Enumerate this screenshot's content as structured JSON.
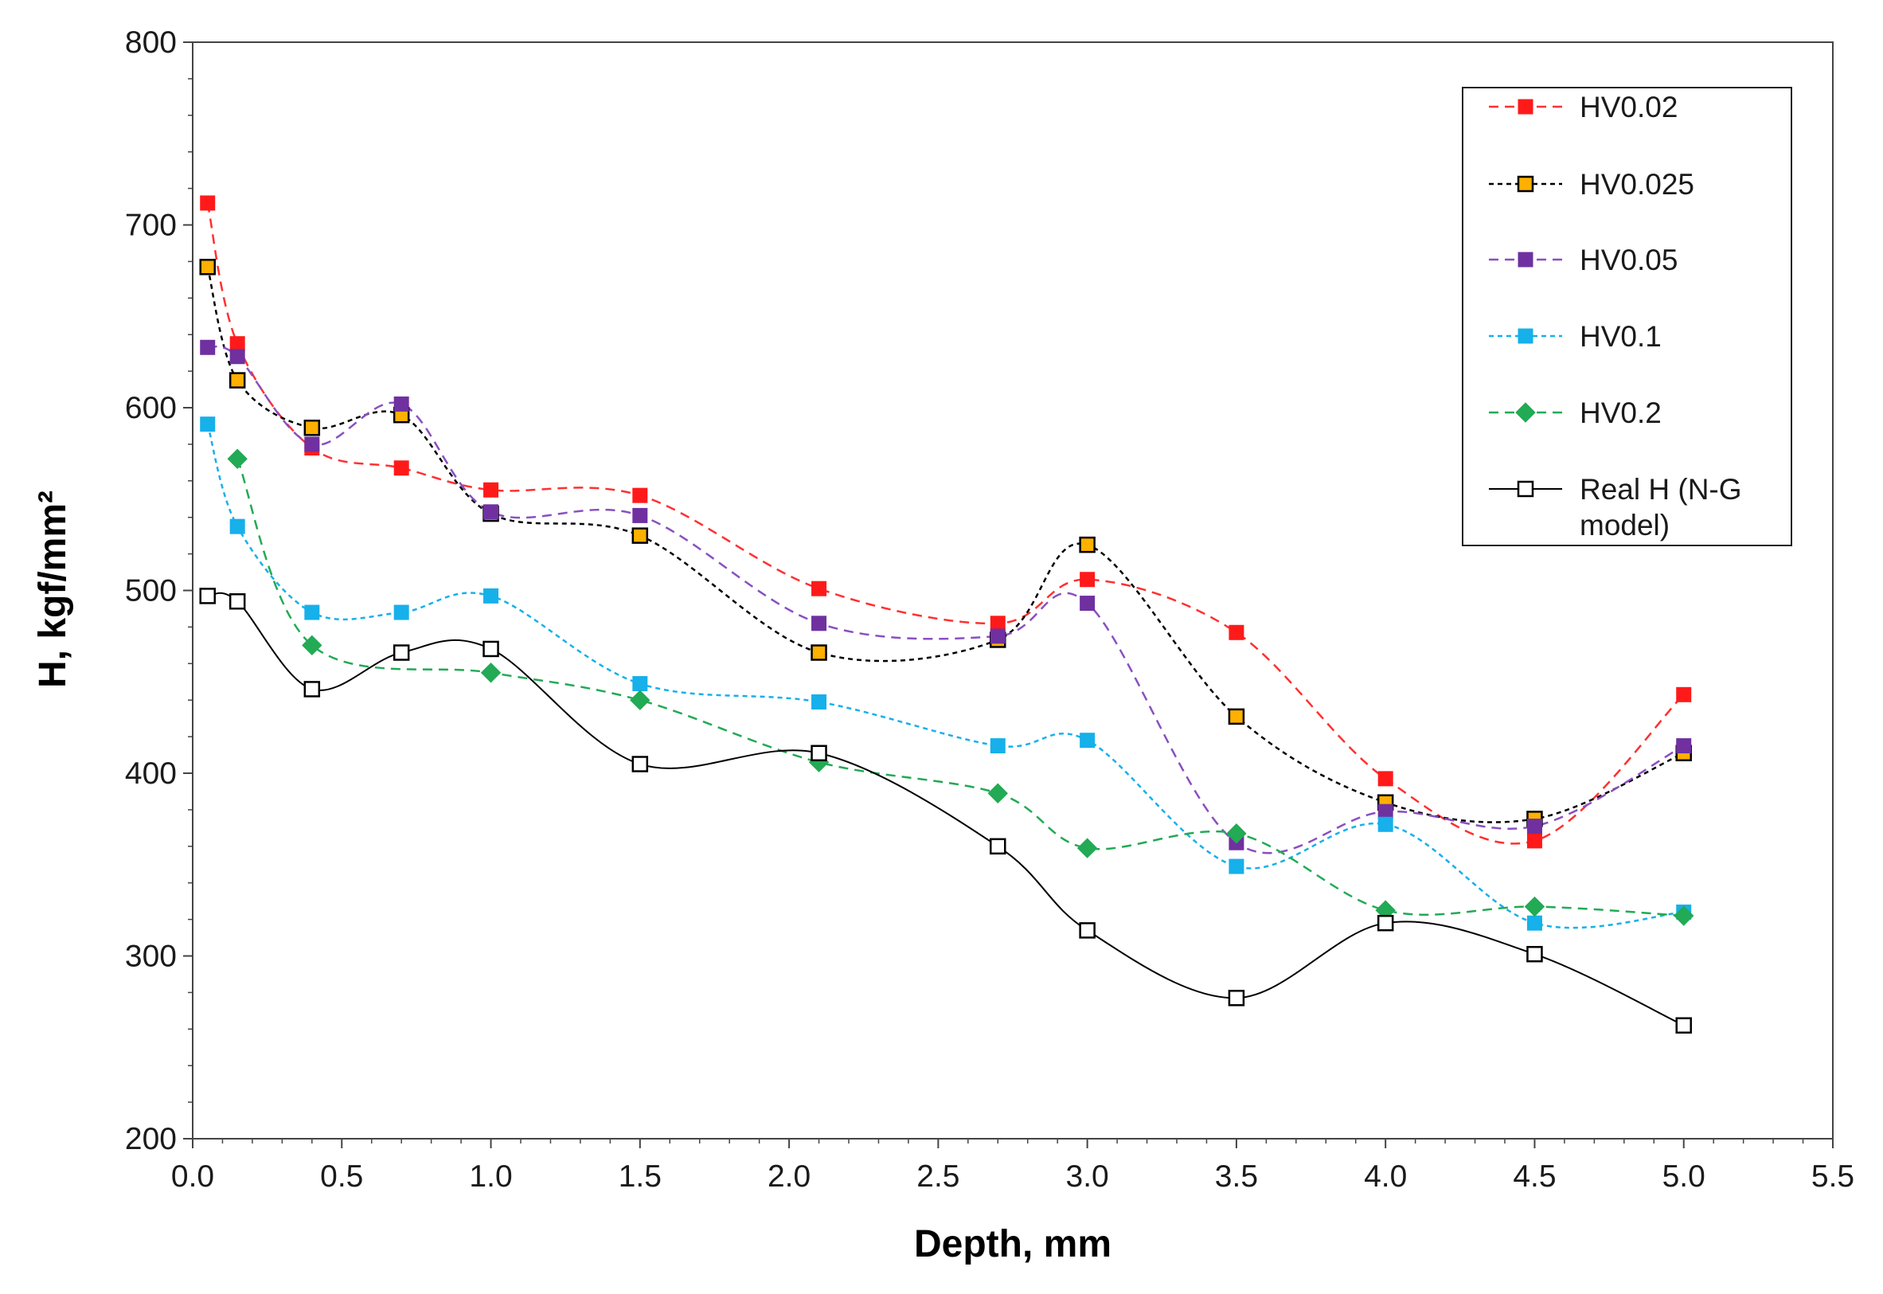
{
  "chart_data": {
    "type": "line",
    "title": "",
    "xlabel": "Depth, mm",
    "ylabel": "H, kgf/mm²",
    "xlim": [
      0.0,
      5.5
    ],
    "ylim": [
      200,
      800
    ],
    "xticks": [
      "0.0",
      "0.5",
      "1.0",
      "1.5",
      "2.0",
      "2.5",
      "3.0",
      "3.5",
      "4.0",
      "4.5",
      "5.0",
      "5.5"
    ],
    "yticks": [
      "200",
      "300",
      "400",
      "500",
      "600",
      "700",
      "800"
    ],
    "grid": false,
    "legend_position": "top-right",
    "x": [
      0.05,
      0.15,
      0.4,
      0.7,
      1.0,
      1.5,
      2.1,
      2.7,
      3.0,
      3.5,
      4.0,
      4.5,
      5.0
    ],
    "series": [
      {
        "name": "HV0.02",
        "color": "#ff1a1a",
        "line_color": "#ff3030",
        "dash": "dashed",
        "marker": "square-filled",
        "values": [
          712,
          635,
          578,
          567,
          555,
          552,
          501,
          482,
          506,
          477,
          397,
          363,
          443
        ]
      },
      {
        "name": "HV0.025",
        "color": "#ffb000",
        "line_color": "#000000",
        "dash": "dotted",
        "marker": "square-outlined",
        "values": [
          677,
          615,
          589,
          596,
          542,
          530,
          466,
          473,
          525,
          431,
          384,
          375,
          411
        ]
      },
      {
        "name": "HV0.05",
        "color": "#7030a0",
        "line_color": "#8a4fc0",
        "dash": "dashed",
        "marker": "square-filled",
        "values": [
          633,
          628,
          580,
          602,
          543,
          541,
          482,
          475,
          493,
          362,
          379,
          371,
          415
        ]
      },
      {
        "name": "HV0.1",
        "color": "#16b0ea",
        "line_color": "#16b0ea",
        "dash": "dotted",
        "marker": "square-filled",
        "values": [
          591,
          535,
          488,
          488,
          497,
          449,
          439,
          415,
          418,
          349,
          372,
          318,
          324
        ]
      },
      {
        "name": "HV0.2",
        "color": "#22aa55",
        "line_color": "#22aa55",
        "dash": "dashed",
        "marker": "diamond",
        "values": [
          null,
          572,
          470,
          null,
          455,
          440,
          406,
          389,
          359,
          367,
          325,
          327,
          322
        ]
      },
      {
        "name": "Real H (N-G model)",
        "color": "#000000",
        "line_color": "#000000",
        "dash": "solid",
        "marker": "square-open",
        "values": [
          497,
          494,
          446,
          466,
          468,
          405,
          411,
          360,
          314,
          277,
          318,
          301,
          262
        ]
      }
    ]
  }
}
